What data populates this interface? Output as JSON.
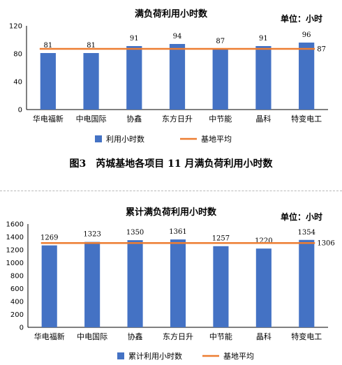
{
  "colors": {
    "bar": "#4472C4",
    "avg_line": "#ED7D31",
    "grid": "#d9d9d9",
    "axis": "#000000"
  },
  "caption": "图3　芮城基地各项目 11 月满负荷利用小时数",
  "chart_data": [
    {
      "type": "bar",
      "title": "满负荷利用小时数",
      "unit_label": "单位：小时",
      "categories": [
        "华电福新",
        "中电国际",
        "协鑫",
        "东方日升",
        "中节能",
        "晶科",
        "特变电工"
      ],
      "series": [
        {
          "name": "利用小时数",
          "type": "bar",
          "values": [
            81,
            81,
            91,
            94,
            87,
            91,
            96
          ]
        },
        {
          "name": "基地平均",
          "type": "line",
          "value": 87
        }
      ],
      "avg_label": "87",
      "ylim": [
        0,
        120
      ],
      "yticks": [
        0,
        40,
        80,
        120
      ],
      "grid": false,
      "legend": "bottom"
    },
    {
      "type": "bar",
      "title": "累计满负荷利用小时数",
      "unit_label": "单位：小时",
      "categories": [
        "华电福新",
        "中电国际",
        "协鑫",
        "东方日升",
        "中节能",
        "晶科",
        "特变电工"
      ],
      "series": [
        {
          "name": "累计利用小时数",
          "type": "bar",
          "values": [
            1269,
            1323,
            1350,
            1361,
            1257,
            1220,
            1354
          ]
        },
        {
          "name": "基地平均",
          "type": "line",
          "value": 1306
        }
      ],
      "avg_label": "1306",
      "ylim": [
        0,
        1600
      ],
      "yticks": [
        0,
        200,
        400,
        600,
        800,
        1000,
        1200,
        1400,
        1600
      ],
      "grid": false,
      "legend": "bottom"
    }
  ]
}
